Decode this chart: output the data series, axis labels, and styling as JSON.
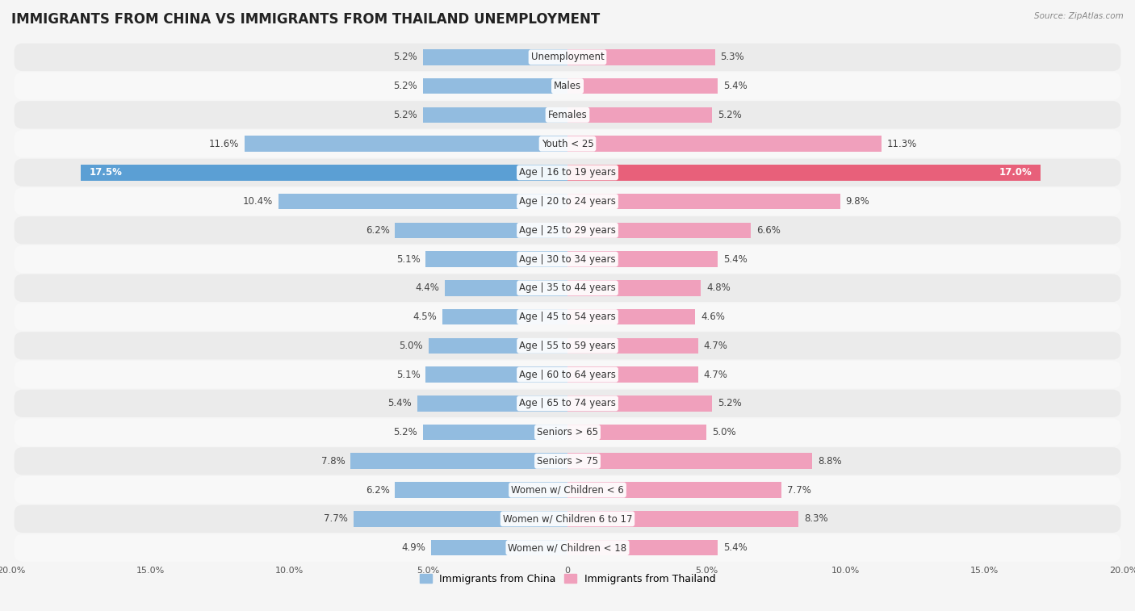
{
  "title": "IMMIGRANTS FROM CHINA VS IMMIGRANTS FROM THAILAND UNEMPLOYMENT",
  "source": "Source: ZipAtlas.com",
  "categories": [
    "Unemployment",
    "Males",
    "Females",
    "Youth < 25",
    "Age | 16 to 19 years",
    "Age | 20 to 24 years",
    "Age | 25 to 29 years",
    "Age | 30 to 34 years",
    "Age | 35 to 44 years",
    "Age | 45 to 54 years",
    "Age | 55 to 59 years",
    "Age | 60 to 64 years",
    "Age | 65 to 74 years",
    "Seniors > 65",
    "Seniors > 75",
    "Women w/ Children < 6",
    "Women w/ Children 6 to 17",
    "Women w/ Children < 18"
  ],
  "china_values": [
    5.2,
    5.2,
    5.2,
    11.6,
    17.5,
    10.4,
    6.2,
    5.1,
    4.4,
    4.5,
    5.0,
    5.1,
    5.4,
    5.2,
    7.8,
    6.2,
    7.7,
    4.9
  ],
  "thailand_values": [
    5.3,
    5.4,
    5.2,
    11.3,
    17.0,
    9.8,
    6.6,
    5.4,
    4.8,
    4.6,
    4.7,
    4.7,
    5.2,
    5.0,
    8.8,
    7.7,
    8.3,
    5.4
  ],
  "china_color": "#92bce0",
  "thailand_color": "#f0a0bc",
  "china_highlight_color": "#5b9fd4",
  "thailand_highlight_color": "#e8607a",
  "row_color_even": "#ebebeb",
  "row_color_odd": "#f8f8f8",
  "bg_color": "#f5f5f5",
  "xlim": 20.0,
  "legend_china": "Immigrants from China",
  "legend_thailand": "Immigrants from Thailand",
  "title_fontsize": 12,
  "label_fontsize": 8.5,
  "value_fontsize": 8.5,
  "tick_fontsize": 8
}
